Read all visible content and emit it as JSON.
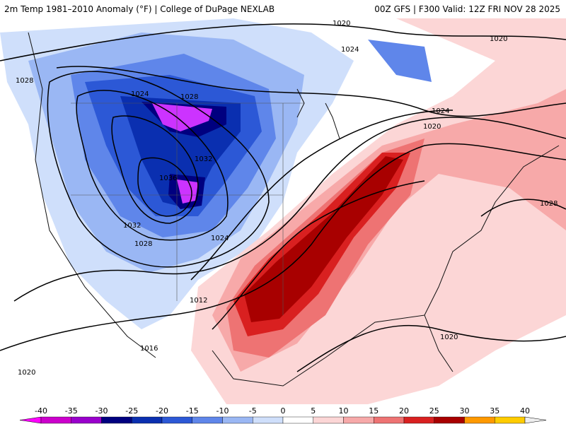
{
  "header": {
    "left_title": "2m Temp 1981–2010 Anomaly (°F) | College of DuPage NEXLAB",
    "right_title": "00Z GFS | F300 Valid: 12Z FRI NOV 28 2025"
  },
  "isobars": [
    "1020",
    "1020",
    "1024",
    "1024",
    "1028",
    "1028",
    "1024",
    "1032",
    "1036",
    "1032",
    "1028",
    "1024",
    "1020",
    "1028",
    "1012",
    "1016",
    "1020",
    "1020"
  ],
  "legend": {
    "ticks": [
      "-40",
      "-35",
      "-30",
      "-25",
      "-20",
      "-15",
      "-10",
      "-5",
      "0",
      "5",
      "10",
      "15",
      "20",
      "25",
      "30",
      "35",
      "40"
    ],
    "colors": [
      "#ff00ff",
      "#cc00cc",
      "#9900cc",
      "#00007f",
      "#0a2fb0",
      "#2c58d6",
      "#5f86ea",
      "#9ab7f4",
      "#cfdffb",
      "#ffffff",
      "#fcd6d6",
      "#f7a9a9",
      "#ee7373",
      "#d92020",
      "#a80000",
      "#ff9900",
      "#ffcc00",
      "#ffdd55"
    ]
  },
  "colors": {
    "cold_extreme": "#cc33ff",
    "cold": "#1a3fc9",
    "cool": "#9ab7f4",
    "warm": "#f7a9a9",
    "hot": "#c40000"
  }
}
